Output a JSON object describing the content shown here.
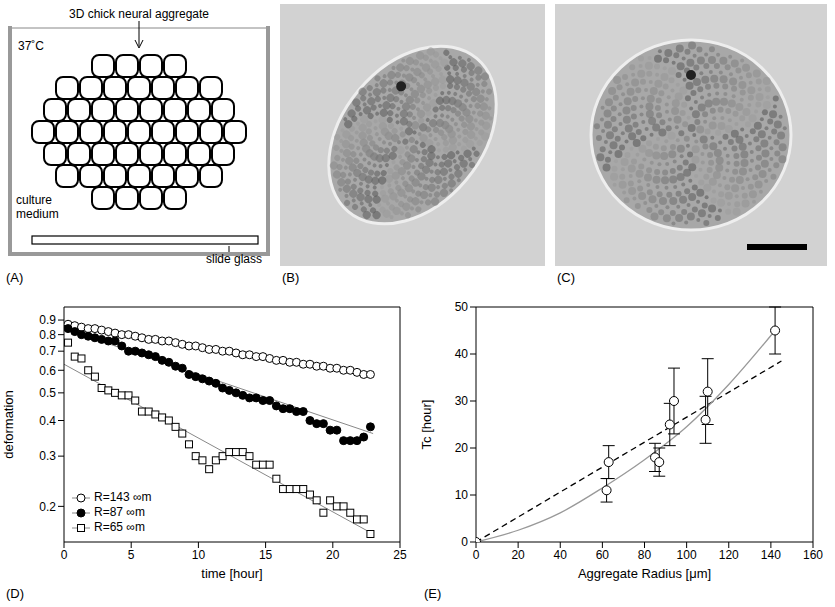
{
  "panel_labels": [
    "(A)",
    "(B)",
    "(C)",
    "(D)",
    "(E)"
  ],
  "diagram": {
    "title": "3D chick neural aggregate",
    "temperature": "37˚C",
    "medium": "culture medium",
    "substrate": "slide glass"
  },
  "chart_data": [
    {
      "type": "scatter",
      "x_label": "time [hour]",
      "y_label": "deformation",
      "log": "y",
      "legend": "lower left",
      "xlim": [
        0,
        25
      ],
      "xticks": [
        0,
        5,
        10,
        15,
        20,
        25
      ],
      "ylim": [
        0.15,
        1
      ],
      "yticks": [
        0.2,
        0.3,
        0.4,
        0.5,
        0.6,
        0.7,
        0.8,
        0.9
      ],
      "x": [
        0.3,
        0.8,
        1.3,
        1.8,
        2.3,
        2.8,
        3.3,
        3.8,
        4.3,
        4.8,
        5.3,
        5.8,
        6.3,
        6.8,
        7.3,
        7.8,
        8.3,
        8.8,
        9.3,
        9.8,
        10.3,
        10.8,
        11.3,
        11.8,
        12.3,
        12.8,
        13.3,
        13.8,
        14.3,
        14.8,
        15.3,
        15.8,
        16.3,
        16.8,
        17.3,
        17.8,
        18.3,
        18.8,
        19.3,
        19.8,
        20.3,
        20.8,
        21.3,
        21.8,
        22.3,
        22.8
      ],
      "series": [
        {
          "name": "R=143 ∞m",
          "color": "#000000",
          "marker": "circle_open",
          "values": [
            0.87,
            0.86,
            0.85,
            0.84,
            0.84,
            0.83,
            0.82,
            0.81,
            0.8,
            0.8,
            0.79,
            0.78,
            0.77,
            0.77,
            0.76,
            0.76,
            0.75,
            0.74,
            0.73,
            0.73,
            0.72,
            0.71,
            0.71,
            0.7,
            0.7,
            0.69,
            0.68,
            0.68,
            0.67,
            0.67,
            0.66,
            0.65,
            0.65,
            0.64,
            0.64,
            0.63,
            0.63,
            0.62,
            0.62,
            0.61,
            0.61,
            0.6,
            0.6,
            0.59,
            0.58,
            0.58
          ],
          "fit": {
            "x": [
              0,
              23
            ],
            "values": [
              0.87,
              0.58
            ]
          }
        },
        {
          "name": "R=87 ∞m",
          "color": "#000000",
          "marker": "circle_filled",
          "values": [
            0.84,
            0.82,
            0.8,
            0.79,
            0.78,
            0.77,
            0.76,
            0.76,
            0.73,
            0.7,
            0.7,
            0.69,
            0.68,
            0.67,
            0.65,
            0.64,
            0.62,
            0.61,
            0.58,
            0.57,
            0.56,
            0.55,
            0.54,
            0.52,
            0.51,
            0.5,
            0.49,
            0.48,
            0.48,
            0.47,
            0.47,
            0.45,
            0.44,
            0.44,
            0.43,
            0.43,
            0.4,
            0.39,
            0.39,
            0.37,
            0.37,
            0.34,
            0.34,
            0.34,
            0.35,
            0.38
          ],
          "fit": {
            "x": [
              0,
              23
            ],
            "values": [
              0.84,
              0.36
            ]
          }
        },
        {
          "name": "R=65 ∞m",
          "color": "#000000",
          "marker": "square_open",
          "values": [
            0.75,
            0.67,
            0.66,
            0.6,
            0.57,
            0.52,
            0.51,
            0.5,
            0.49,
            0.49,
            0.47,
            0.43,
            0.43,
            0.42,
            0.41,
            0.4,
            0.38,
            0.36,
            0.33,
            0.3,
            0.29,
            0.27,
            0.29,
            0.3,
            0.31,
            0.31,
            0.31,
            0.3,
            0.28,
            0.28,
            0.28,
            0.25,
            0.23,
            0.23,
            0.23,
            0.23,
            0.22,
            0.21,
            0.19,
            0.21,
            0.2,
            0.2,
            0.19,
            0.18,
            0.18,
            0.16
          ],
          "fit": {
            "x": [
              0,
              23
            ],
            "values": [
              0.63,
              0.16
            ]
          }
        }
      ]
    },
    {
      "type": "scatter",
      "x_label": "Aggregate Radius [μm]",
      "y_label": "Tc [hour]",
      "marker": "circle_open",
      "color": "#000000",
      "xlim": [
        0,
        160
      ],
      "xticks": [
        0,
        20,
        40,
        60,
        80,
        100,
        120,
        140,
        160
      ],
      "ylim": [
        0,
        50
      ],
      "yticks": [
        0,
        10,
        20,
        30,
        40,
        50
      ],
      "x": [
        0,
        62,
        63,
        85,
        87,
        92,
        94,
        109,
        110,
        142
      ],
      "values": [
        0,
        11,
        17,
        18,
        17,
        25,
        30,
        26,
        32,
        45
      ],
      "errors": [
        0,
        2.5,
        3.5,
        3,
        3,
        4.5,
        7,
        5,
        7,
        5
      ],
      "fits": [
        {
          "line_style": "dashed",
          "color": "#000000",
          "x": [
            0,
            145
          ],
          "values": [
            0,
            38.5
          ]
        },
        {
          "line_style": "solid",
          "color": "#999999",
          "x": [
            0,
            20,
            40,
            60,
            80,
            100,
            120,
            142
          ],
          "values": [
            0,
            2.5,
            6.2,
            11.5,
            17.5,
            24.5,
            33.5,
            45
          ]
        }
      ]
    }
  ]
}
